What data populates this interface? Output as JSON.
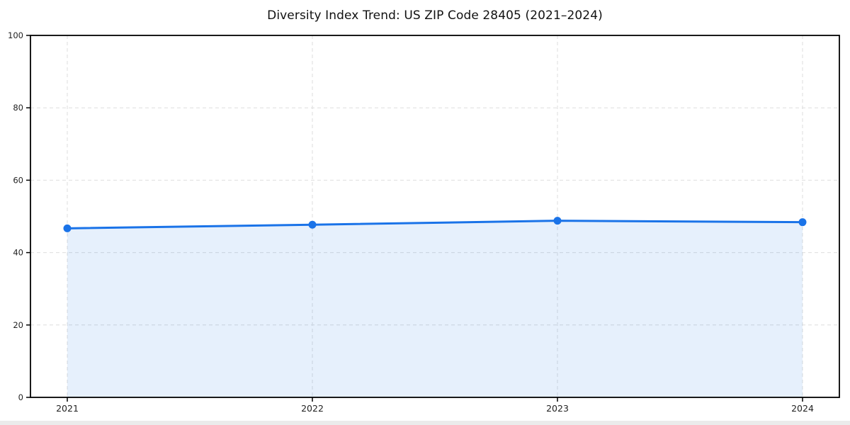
{
  "page": {
    "background": "#ffffff"
  },
  "chart_data": {
    "type": "area",
    "title": "Diversity Index Trend: US ZIP Code 28405 (2021–2024)",
    "x": [
      "2021",
      "2022",
      "2023",
      "2024"
    ],
    "values": [
      46.7,
      47.7,
      48.8,
      48.4
    ],
    "xlabel": "",
    "ylabel": "",
    "ylim": [
      0,
      100
    ],
    "yticks": [
      0,
      20,
      40,
      60,
      80,
      100
    ],
    "grid": true,
    "grid_style": "dashed",
    "legend_position": "none",
    "colors": {
      "line": "#1a73e8",
      "marker": "#1a73e8",
      "fill": "#1a73e8",
      "fill_opacity": 0.11,
      "grid": "#dedede",
      "axis": "#000000",
      "tick_label": "#222222",
      "title": "#111111"
    }
  }
}
